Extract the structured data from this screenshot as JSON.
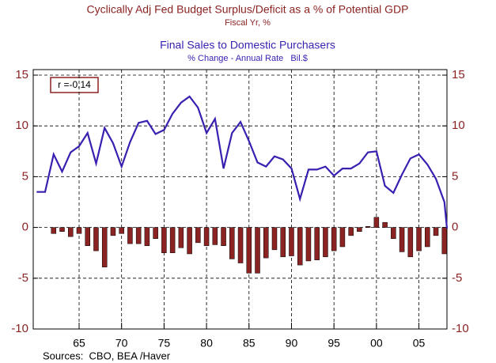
{
  "chart_data": {
    "type": "combo",
    "subtitle": "Fiscal Yr, %",
    "line_subtitle": "% Change - Annual Rate   Bil.$",
    "annotation": "r =-0.14",
    "source": "Sources:  CBO, BEA /Haver",
    "grid": true,
    "xlim": [
      1959.6,
      2008.3
    ],
    "xticks": [
      {
        "value": 1965,
        "label": "65"
      },
      {
        "value": 1970,
        "label": "70"
      },
      {
        "value": 1975,
        "label": "75"
      },
      {
        "value": 1980,
        "label": "80"
      },
      {
        "value": 1985,
        "label": "85"
      },
      {
        "value": 1990,
        "label": "90"
      },
      {
        "value": 1995,
        "label": "95"
      },
      {
        "value": 2000,
        "label": "00"
      },
      {
        "value": 2005,
        "label": "05"
      }
    ],
    "ylim": [
      -10,
      15
    ],
    "yticks": [
      15,
      10,
      5,
      0,
      -5,
      -10
    ],
    "y2lim": [
      -10,
      15
    ],
    "y2ticks": [
      15,
      10,
      5,
      0,
      -5,
      -10
    ],
    "series": [
      {
        "name": "Cyclically Adj Fed Budget Surplus/Deficit as a % of Potential GDP",
        "type": "bar",
        "color": "#8b2323",
        "x": [
          1962,
          1963,
          1964,
          1965,
          1966,
          1967,
          1968,
          1969,
          1970,
          1971,
          1972,
          1973,
          1974,
          1975,
          1976,
          1977,
          1978,
          1979,
          1980,
          1981,
          1982,
          1983,
          1984,
          1985,
          1986,
          1987,
          1988,
          1989,
          1990,
          1991,
          1992,
          1993,
          1994,
          1995,
          1996,
          1997,
          1998,
          1999,
          2000,
          2001,
          2002,
          2003,
          2004,
          2005,
          2006,
          2007,
          2008
        ],
        "values": [
          -0.6,
          -0.4,
          -0.9,
          -0.6,
          -1.8,
          -2.3,
          -3.9,
          -0.8,
          -0.6,
          -1.6,
          -1.6,
          -1.8,
          -1.1,
          -2.5,
          -2.5,
          -2.0,
          -2.6,
          -1.5,
          -1.8,
          -1.7,
          -1.8,
          -3.1,
          -3.5,
          -4.5,
          -4.5,
          -3.0,
          -2.2,
          -2.9,
          -2.8,
          -3.7,
          -3.3,
          -3.2,
          -2.9,
          -2.3,
          -1.9,
          -0.8,
          -0.4,
          0.1,
          1.0,
          0.5,
          -1.1,
          -2.4,
          -2.9,
          -2.3,
          -1.9,
          -0.8,
          -2.6
        ]
      },
      {
        "name": "Final Sales to Domestic Purchasers",
        "type": "line",
        "color": "#3a1fb0",
        "axis": "y2",
        "x": [
          1960,
          1961,
          1962,
          1963,
          1964,
          1965,
          1966,
          1967,
          1968,
          1969,
          1970,
          1971,
          1972,
          1973,
          1974,
          1975,
          1976,
          1977,
          1978,
          1979,
          1980,
          1981,
          1982,
          1983,
          1984,
          1985,
          1986,
          1987,
          1988,
          1989,
          1990,
          1991,
          1992,
          1993,
          1994,
          1995,
          1996,
          1997,
          1998,
          1999,
          2000,
          2001,
          2002,
          2003,
          2004,
          2005,
          2006,
          2007,
          2008,
          2008.3
        ],
        "values": [
          3.5,
          3.5,
          7.2,
          5.5,
          7.4,
          8.0,
          9.3,
          6.3,
          9.8,
          8.3,
          6.0,
          8.4,
          10.3,
          10.5,
          9.2,
          9.6,
          11.2,
          12.3,
          12.9,
          11.8,
          9.3,
          10.7,
          5.8,
          9.3,
          10.4,
          8.5,
          6.4,
          6.0,
          7.0,
          6.7,
          5.8,
          2.8,
          5.7,
          5.7,
          6.0,
          5.1,
          5.8,
          5.8,
          6.3,
          7.4,
          7.5,
          4.1,
          3.4,
          5.2,
          6.8,
          7.2,
          6.2,
          4.8,
          2.5,
          -0.1
        ]
      }
    ]
  }
}
